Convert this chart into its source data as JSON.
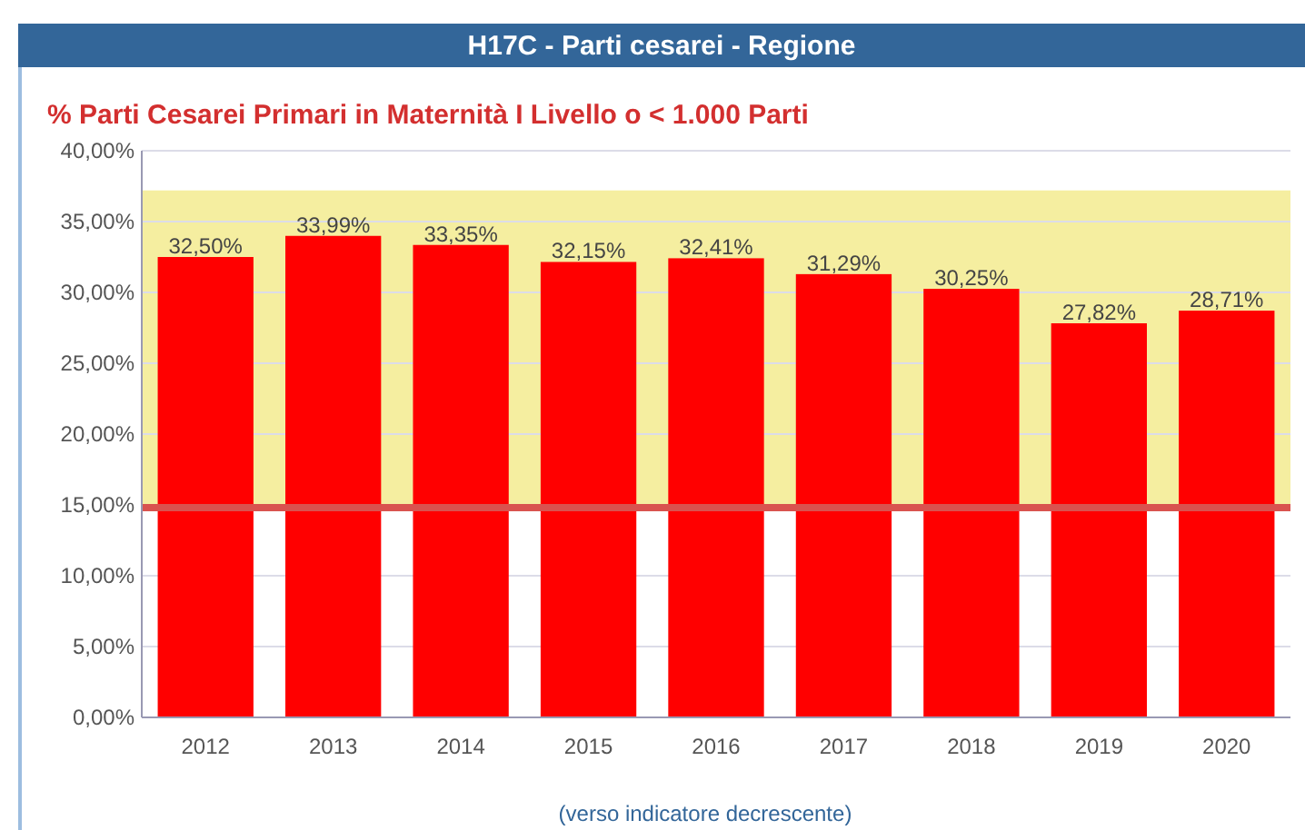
{
  "chart_data": {
    "type": "bar",
    "title": "H17C - Parti cesarei - Regione",
    "subtitle": "% Parti Cesarei Primari in Maternità I Livello o < 1.000 Parti",
    "categories": [
      "2012",
      "2013",
      "2014",
      "2015",
      "2016",
      "2017",
      "2018",
      "2019",
      "2020"
    ],
    "values": [
      32.5,
      33.99,
      33.35,
      32.15,
      32.41,
      31.29,
      30.25,
      27.82,
      28.71
    ],
    "value_labels": [
      "32,50%",
      "33,99%",
      "33,35%",
      "32,15%",
      "32,41%",
      "31,29%",
      "30,25%",
      "27,82%",
      "28,71%"
    ],
    "color": "#ff0000",
    "ylim": [
      0,
      40
    ],
    "yticks": [
      {
        "value": 0,
        "label": "0,00%"
      },
      {
        "value": 5,
        "label": "5,00%"
      },
      {
        "value": 10,
        "label": "10,00%"
      },
      {
        "value": 15,
        "label": "15,00%"
      },
      {
        "value": 20,
        "label": "20,00%"
      },
      {
        "value": 25,
        "label": "25,00%"
      },
      {
        "value": 30,
        "label": "30,00%"
      },
      {
        "value": 35,
        "label": "35,00%"
      },
      {
        "value": 40,
        "label": "40,00%"
      }
    ],
    "grid": "y",
    "bands": [
      {
        "axis": "y",
        "from": 15,
        "to": 37.2,
        "color": "#f5eea0"
      }
    ],
    "ref_lines": [
      {
        "axis": "y",
        "value": 14.8,
        "color": "#d9534f"
      }
    ],
    "annotations": [
      "(verso indicatore decrescente)"
    ]
  }
}
